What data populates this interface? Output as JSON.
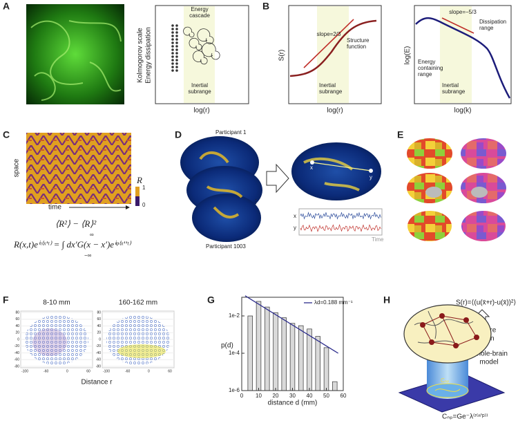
{
  "panels": {
    "A": {
      "label": "A",
      "ylabel": [
        "Kolmogorov scale",
        "Energy dissipation"
      ],
      "xlabel": "log(r)",
      "top": [
        "Energy",
        "cascade"
      ],
      "band": [
        "Inertial",
        "subrange"
      ]
    },
    "B": {
      "label": "B",
      "left": {
        "ylabel": "S(r)",
        "xlabel": "log(r)",
        "slope": "slope=2/3",
        "curve": [
          "Structure",
          "function"
        ],
        "band": [
          "Inertial",
          "subrange"
        ]
      },
      "right": {
        "ylabel": "log(E)",
        "xlabel": "log(k)",
        "slope": "slope=−5/3",
        "dissipation": [
          "Dissipation",
          "range"
        ],
        "energy": [
          "Energy",
          "containing",
          "range"
        ],
        "band": [
          "Inertial",
          "subrange"
        ]
      }
    },
    "C": {
      "label": "C",
      "ylabel": "space",
      "xlabel": "time",
      "colorbar": {
        "title": "R",
        "max": "1",
        "min": "0"
      },
      "formula1": "⟨R²⟩ − ⟨R⟩²",
      "formula2": "R(x,t)eⁱᶥ⁽ˣʹᵗ⁾ = ∫ dx′G(x − x′)eⁱᵠ⁽ˣ′ʹᵗ⁾",
      "upper": "∞",
      "lower": "−∞"
    },
    "D": {
      "label": "D",
      "participant1": "Participant 1",
      "participant2": "Participant 1003",
      "x": "x",
      "y": "y",
      "time": "Time"
    },
    "E": {
      "label": "E"
    },
    "F": {
      "label": "F",
      "left_title": "8-10 mm",
      "right_title": "160-162 mm",
      "xlabel": "Distance r",
      "yticks": [
        "80",
        "60",
        "40",
        "20",
        "0",
        "-20",
        "-40",
        "-60",
        "-80"
      ],
      "xticks": [
        "-100",
        "-60",
        "0",
        "60"
      ]
    },
    "G": {
      "label": "G",
      "chart_data": {
        "type": "bar",
        "xlabel": "distance d (mm)",
        "ylabel": "p(d)",
        "color": "#d9d9d9",
        "x": [
          5,
          10,
          15,
          20,
          25,
          30,
          35,
          40,
          45,
          50,
          55
        ],
        "values": [
          0.01,
          0.06,
          0.03,
          0.015,
          0.008,
          0.004,
          0.003,
          0.002,
          0.0008,
          0.0002,
          3e-06
        ],
        "xlim": [
          0,
          60
        ],
        "xticks": [
          0,
          10,
          20,
          30,
          40,
          50,
          60
        ],
        "ylim": [
          1e-06,
          0.1
        ],
        "yscale": "log",
        "yticks": [
          {
            "value": 1e-06,
            "label": "1e-6"
          },
          {
            "value": 0.0001,
            "label": "1e-4"
          },
          {
            "value": 0.01,
            "label": "1e-2"
          }
        ],
        "fit": {
          "name": "λd=0.188 mm⁻¹",
          "color": "#2b2b8c",
          "x": [
            2,
            57
          ],
          "values": [
            0.12,
            0.0001
          ]
        }
      }
    },
    "H": {
      "label": "H",
      "formula": "S(r)=⟨(u(x̄+r)-u(x̄))²⟩",
      "structure": [
        "Structure",
        "function"
      ],
      "model": [
        "Whole-brain",
        "model"
      ],
      "cnp": "Cₙₚ",
      "formula2": "Cₙₚ=Ge⁻λ⁽ʳ⁽ⁿʹᵖ⁾⁾"
    }
  }
}
